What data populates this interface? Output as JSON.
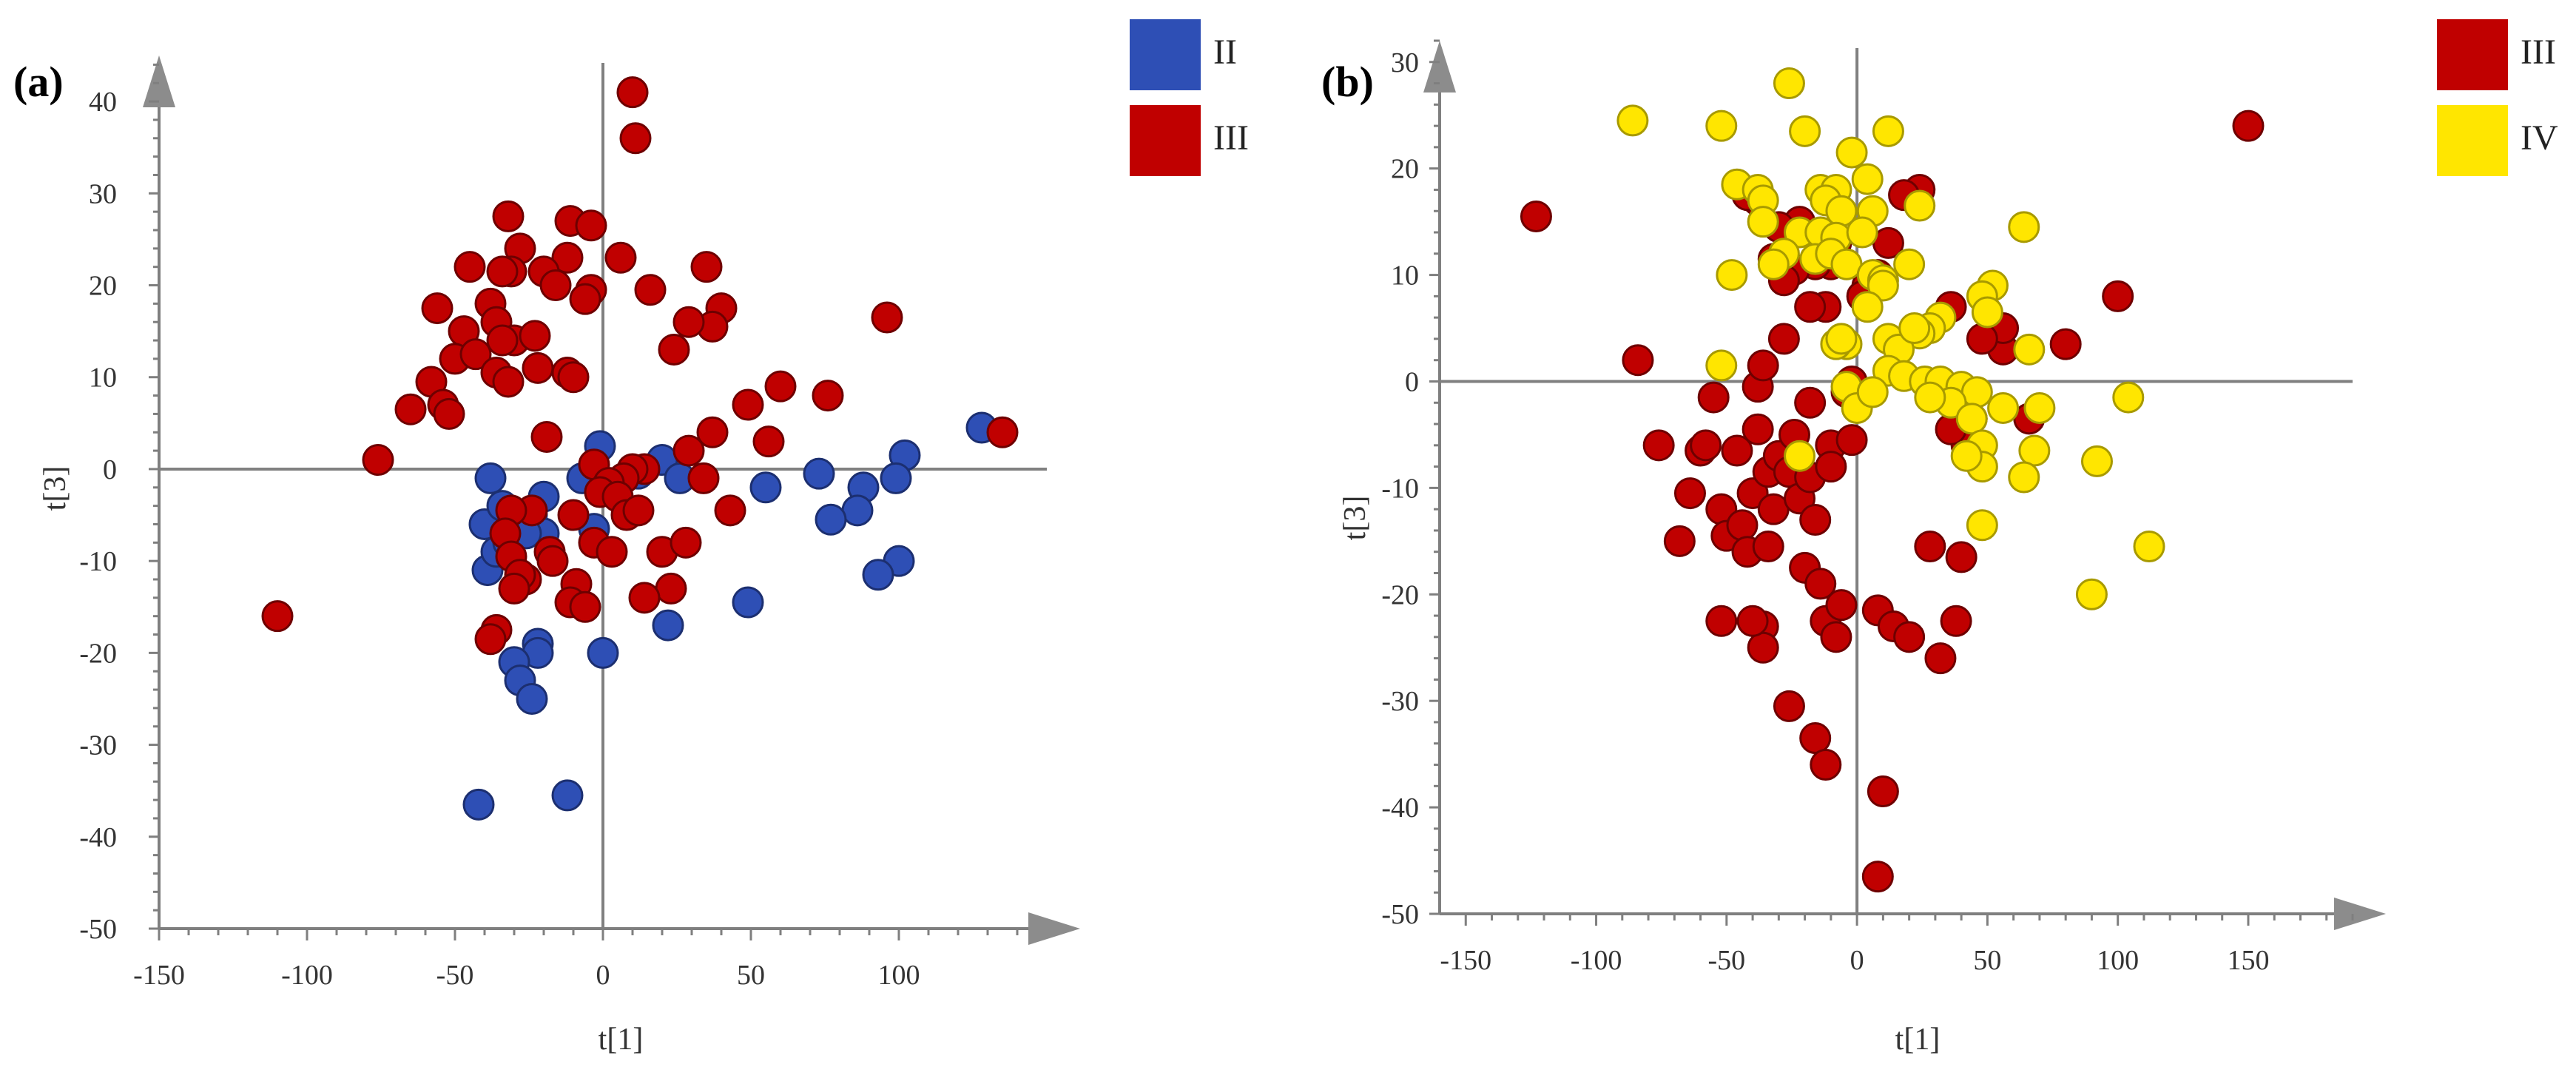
{
  "colors": {
    "II": "#2e4fb5",
    "III": "#c00000",
    "IV": "#ffe600",
    "II_stroke": "#1c2f70",
    "III_stroke": "#6e0000",
    "IV_stroke": "#a89a00"
  },
  "chart_data": [
    {
      "type": "scatter",
      "panel_label": "(a)",
      "xlabel": "t[1]",
      "ylabel": "t[3]",
      "xlim": [
        -150,
        150
      ],
      "ylim": [
        -50,
        45
      ],
      "xticks": [
        -150,
        -100,
        -50,
        0,
        50,
        100
      ],
      "yticks": [
        -50,
        -40,
        -30,
        -20,
        -10,
        0,
        10,
        20,
        30,
        40
      ],
      "legend": [
        "II",
        "III"
      ],
      "series": [
        {
          "name": "II",
          "points": [
            [
              128,
              4.5
            ],
            [
              102,
              1.5
            ],
            [
              99,
              -1
            ],
            [
              88,
              -2
            ],
            [
              86,
              -4.5
            ],
            [
              73,
              -0.5
            ],
            [
              77,
              -5.5
            ],
            [
              100,
              -10
            ],
            [
              93,
              -11.5
            ],
            [
              55,
              -2
            ],
            [
              49,
              -14.5
            ],
            [
              22,
              -17
            ],
            [
              20,
              1
            ],
            [
              26,
              -1
            ],
            [
              12,
              -0.5
            ],
            [
              -1,
              2.5
            ],
            [
              -7,
              -1
            ],
            [
              -3,
              -6.5
            ],
            [
              -20,
              -3
            ],
            [
              -24,
              -5
            ],
            [
              -20,
              -7
            ],
            [
              -38,
              -1
            ],
            [
              -40,
              -6
            ],
            [
              -39,
              -11
            ],
            [
              -36,
              -9
            ],
            [
              -32,
              -8
            ],
            [
              -26,
              -7
            ],
            [
              -34,
              -4
            ],
            [
              -22,
              -19
            ],
            [
              -22,
              -20
            ],
            [
              -30,
              -21
            ],
            [
              -28,
              -23
            ],
            [
              -24,
              -25
            ],
            [
              0,
              -20
            ],
            [
              -12,
              -35.5
            ],
            [
              -42,
              -36.5
            ]
          ]
        },
        {
          "name": "III",
          "points": [
            [
              10,
              41
            ],
            [
              11,
              36
            ],
            [
              -32,
              27.5
            ],
            [
              -11,
              27
            ],
            [
              -4,
              26.5
            ],
            [
              -12,
              23
            ],
            [
              6,
              23
            ],
            [
              -28,
              24
            ],
            [
              -31,
              21.5
            ],
            [
              -34,
              21.5
            ],
            [
              -45,
              22
            ],
            [
              -20,
              21.5
            ],
            [
              -16,
              20
            ],
            [
              -4,
              19.5
            ],
            [
              -6,
              18.5
            ],
            [
              16,
              19.5
            ],
            [
              35,
              22
            ],
            [
              40,
              17.5
            ],
            [
              37,
              15.5
            ],
            [
              29,
              16
            ],
            [
              24,
              13
            ],
            [
              -56,
              17.5
            ],
            [
              -38,
              18
            ],
            [
              -36,
              16
            ],
            [
              -30,
              14
            ],
            [
              -23,
              14.5
            ],
            [
              -34,
              14
            ],
            [
              -47,
              15
            ],
            [
              -50,
              12
            ],
            [
              -43,
              12.5
            ],
            [
              -36,
              10.5
            ],
            [
              -32,
              9.5
            ],
            [
              -58,
              9.5
            ],
            [
              -54,
              7
            ],
            [
              -65,
              6.5
            ],
            [
              -22,
              11
            ],
            [
              -12,
              10.5
            ],
            [
              -10,
              10
            ],
            [
              -3,
              0.5
            ],
            [
              -19,
              3.5
            ],
            [
              -76,
              1
            ],
            [
              -52,
              6
            ],
            [
              60,
              9
            ],
            [
              76,
              8
            ],
            [
              96,
              16.5
            ],
            [
              135,
              4
            ],
            [
              49,
              7
            ],
            [
              56,
              3
            ],
            [
              37,
              4
            ],
            [
              29,
              2
            ],
            [
              14,
              0
            ],
            [
              10,
              0
            ],
            [
              7,
              -1
            ],
            [
              2,
              -1.5
            ],
            [
              -1,
              -2.5
            ],
            [
              5,
              -3
            ],
            [
              -10,
              -5
            ],
            [
              -24,
              -4.5
            ],
            [
              -31,
              -4.5
            ],
            [
              -33,
              -7
            ],
            [
              -31,
              -9.5
            ],
            [
              -18,
              -9
            ],
            [
              -17,
              -10
            ],
            [
              -26,
              -12
            ],
            [
              -28,
              -11.5
            ],
            [
              -3,
              -8
            ],
            [
              8,
              -5
            ],
            [
              12,
              -4.5
            ],
            [
              3,
              -9
            ],
            [
              20,
              -9
            ],
            [
              28,
              -8
            ],
            [
              43,
              -4.5
            ],
            [
              34,
              -1
            ],
            [
              -9,
              -12.5
            ],
            [
              -11,
              -14.5
            ],
            [
              -6,
              -15
            ],
            [
              23,
              -13
            ],
            [
              14,
              -14
            ],
            [
              -30,
              -13
            ],
            [
              -36,
              -17.5
            ],
            [
              -38,
              -18.5
            ],
            [
              -110,
              -16
            ]
          ]
        }
      ]
    },
    {
      "type": "scatter",
      "panel_label": "(b)",
      "xlabel": "t[1]",
      "ylabel": "t[3]",
      "xlim": [
        -160,
        190
      ],
      "ylim": [
        -50,
        32
      ],
      "xticks": [
        -150,
        -100,
        -50,
        0,
        50,
        100,
        150
      ],
      "yticks": [
        -50,
        -40,
        -30,
        -20,
        -10,
        0,
        10,
        20,
        30
      ],
      "legend": [
        "III",
        "IV"
      ],
      "series": [
        {
          "name": "III",
          "points": [
            [
              -123,
              15.5
            ],
            [
              -84,
              2
            ],
            [
              -76,
              -6
            ],
            [
              -68,
              -15
            ],
            [
              -64,
              -10.5
            ],
            [
              -60,
              -6.5
            ],
            [
              -58,
              -6
            ],
            [
              -55,
              -1.5
            ],
            [
              -52,
              -12
            ],
            [
              -50,
              -14.5
            ],
            [
              -46,
              -6.5
            ],
            [
              -44,
              -13.5
            ],
            [
              -42,
              -16
            ],
            [
              -40,
              -10.5
            ],
            [
              -38,
              -4.5
            ],
            [
              -38,
              -0.5
            ],
            [
              -36,
              1.5
            ],
            [
              -34,
              -8.5
            ],
            [
              -34,
              -15.5
            ],
            [
              -32,
              -12
            ],
            [
              -30,
              -7
            ],
            [
              -26,
              -8.5
            ],
            [
              -24,
              -5
            ],
            [
              -22,
              -11
            ],
            [
              -20,
              -17.5
            ],
            [
              -18,
              -9
            ],
            [
              -16,
              -13
            ],
            [
              -14,
              -19
            ],
            [
              -12,
              -22.5
            ],
            [
              -10,
              -6
            ],
            [
              -8,
              -24
            ],
            [
              -6,
              -21
            ],
            [
              -2,
              -5.5
            ],
            [
              -4,
              -1
            ],
            [
              -2,
              0
            ],
            [
              -16,
              -33.5
            ],
            [
              -12,
              -36
            ],
            [
              -26,
              -30.5
            ],
            [
              -36,
              -23
            ],
            [
              -36,
              -25
            ],
            [
              -40,
              -22.5
            ],
            [
              -52,
              -22.5
            ],
            [
              8,
              -21.5
            ],
            [
              14,
              -23
            ],
            [
              20,
              -24
            ],
            [
              32,
              -26
            ],
            [
              28,
              -15.5
            ],
            [
              38,
              -22.5
            ],
            [
              40,
              -16.5
            ],
            [
              42,
              -6
            ],
            [
              44,
              -3.5
            ],
            [
              36,
              -4.5
            ],
            [
              36,
              7
            ],
            [
              24,
              18
            ],
            [
              18,
              17.5
            ],
            [
              12,
              13
            ],
            [
              8,
              10
            ],
            [
              4,
              9
            ],
            [
              2,
              8
            ],
            [
              -8,
              13
            ],
            [
              -10,
              11
            ],
            [
              -12,
              7
            ],
            [
              -16,
              11
            ],
            [
              -18,
              7
            ],
            [
              -22,
              15
            ],
            [
              -24,
              10.5
            ],
            [
              -28,
              9.5
            ],
            [
              -30,
              14.5
            ],
            [
              -32,
              11.5
            ],
            [
              -38,
              17
            ],
            [
              -42,
              17.5
            ],
            [
              -28,
              4
            ],
            [
              -18,
              -2
            ],
            [
              -10,
              -8
            ],
            [
              10,
              -38.5
            ],
            [
              8,
              -46.5
            ],
            [
              80,
              3.5
            ],
            [
              100,
              8
            ],
            [
              150,
              24
            ],
            [
              66,
              -3.5
            ],
            [
              56,
              3
            ],
            [
              56,
              5
            ],
            [
              48,
              4
            ]
          ]
        },
        {
          "name": "IV",
          "points": [
            [
              -86,
              24.5
            ],
            [
              -26,
              28
            ],
            [
              -52,
              24
            ],
            [
              -20,
              23.5
            ],
            [
              12,
              23.5
            ],
            [
              -2,
              21.5
            ],
            [
              4,
              19
            ],
            [
              -46,
              18.5
            ],
            [
              -38,
              18
            ],
            [
              -36,
              17
            ],
            [
              -14,
              18
            ],
            [
              -8,
              18
            ],
            [
              -12,
              17
            ],
            [
              -6,
              16
            ],
            [
              6,
              16
            ],
            [
              24,
              16.5
            ],
            [
              64,
              14.5
            ],
            [
              -36,
              15
            ],
            [
              -22,
              14
            ],
            [
              -14,
              14
            ],
            [
              -8,
              13.5
            ],
            [
              2,
              14
            ],
            [
              -28,
              12
            ],
            [
              -32,
              11
            ],
            [
              -16,
              11.5
            ],
            [
              -10,
              12
            ],
            [
              -4,
              11
            ],
            [
              6,
              10
            ],
            [
              20,
              11
            ],
            [
              -48,
              10
            ],
            [
              10,
              9.5
            ],
            [
              10,
              9
            ],
            [
              52,
              9
            ],
            [
              48,
              8
            ],
            [
              50,
              6.5
            ],
            [
              32,
              6
            ],
            [
              28,
              5
            ],
            [
              24,
              4.5
            ],
            [
              4,
              7
            ],
            [
              -4,
              3.5
            ],
            [
              -8,
              3.5
            ],
            [
              -6,
              4
            ],
            [
              12,
              4
            ],
            [
              16,
              3
            ],
            [
              22,
              5
            ],
            [
              -52,
              1.5
            ],
            [
              -4,
              -0.5
            ],
            [
              12,
              1
            ],
            [
              18,
              0.5
            ],
            [
              26,
              0
            ],
            [
              32,
              0
            ],
            [
              40,
              -0.5
            ],
            [
              46,
              -1
            ],
            [
              56,
              -2.5
            ],
            [
              70,
              -2.5
            ],
            [
              66,
              3
            ],
            [
              36,
              -2
            ],
            [
              28,
              -1.5
            ],
            [
              44,
              -3.5
            ],
            [
              48,
              -6
            ],
            [
              68,
              -6.5
            ],
            [
              64,
              -9
            ],
            [
              48,
              -13.5
            ],
            [
              -22,
              -7
            ],
            [
              104,
              -1.5
            ],
            [
              92,
              -7.5
            ],
            [
              112,
              -15.5
            ],
            [
              90,
              -20
            ],
            [
              0,
              -2.5
            ],
            [
              6,
              -1
            ],
            [
              48,
              -8
            ],
            [
              42,
              -7
            ]
          ]
        }
      ]
    }
  ]
}
